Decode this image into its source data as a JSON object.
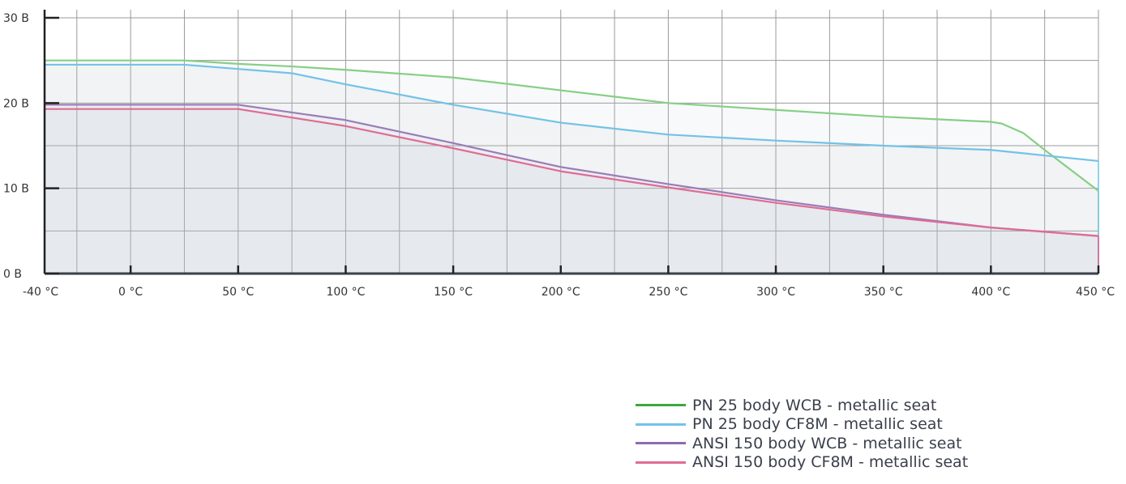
{
  "chart_data": {
    "type": "line",
    "title": "",
    "xlabel": "",
    "ylabel": "",
    "x_domain": [
      -40,
      450
    ],
    "y_domain": [
      0,
      30
    ],
    "x_ticks": [
      {
        "value": -40,
        "label": "-40 °C"
      },
      {
        "value": 0,
        "label": "0 °C"
      },
      {
        "value": 50,
        "label": "50 °C"
      },
      {
        "value": 100,
        "label": "100 °C"
      },
      {
        "value": 150,
        "label": "150 °C"
      },
      {
        "value": 200,
        "label": "200 °C"
      },
      {
        "value": 250,
        "label": "250 °C"
      },
      {
        "value": 300,
        "label": "300 °C"
      },
      {
        "value": 350,
        "label": "350 °C"
      },
      {
        "value": 400,
        "label": "400 °C"
      },
      {
        "value": 450,
        "label": "450 °C"
      }
    ],
    "y_ticks": [
      {
        "value": 0,
        "label": "0 B"
      },
      {
        "value": 10,
        "label": "10 B"
      },
      {
        "value": 20,
        "label": "20 B"
      },
      {
        "value": 30,
        "label": "30 B"
      }
    ],
    "grid": true,
    "legend_position": "bottom-right",
    "series": [
      {
        "name": "PN 25 body WCB - metallic seat",
        "color": "#3aa83a",
        "line_color": "#86cf86",
        "points": [
          [
            -40,
            25
          ],
          [
            25,
            25
          ],
          [
            50,
            24.6
          ],
          [
            75,
            24.3
          ],
          [
            100,
            23.9
          ],
          [
            150,
            23
          ],
          [
            200,
            21.5
          ],
          [
            250,
            20
          ],
          [
            300,
            19.2
          ],
          [
            350,
            18.4
          ],
          [
            400,
            17.8
          ],
          [
            405,
            17.6
          ],
          [
            415,
            16.5
          ],
          [
            425,
            14.5
          ],
          [
            450,
            9.7
          ]
        ]
      },
      {
        "name": "PN 25 body CF8M - metallic seat",
        "color": "#73c2e6",
        "line_color": "#73c2e6",
        "points": [
          [
            -40,
            24.5
          ],
          [
            25,
            24.5
          ],
          [
            50,
            24
          ],
          [
            75,
            23.5
          ],
          [
            100,
            22.2
          ],
          [
            150,
            19.8
          ],
          [
            200,
            17.7
          ],
          [
            250,
            16.3
          ],
          [
            300,
            15.6
          ],
          [
            350,
            15.0
          ],
          [
            400,
            14.5
          ],
          [
            450,
            13.2
          ]
        ]
      },
      {
        "name": "ANSI 150 body WCB - metallic seat",
        "color": "#8e6bad",
        "line_color": "#9a7cb8",
        "points": [
          [
            -40,
            19.8
          ],
          [
            50,
            19.8
          ],
          [
            100,
            18
          ],
          [
            150,
            15.3
          ],
          [
            200,
            12.5
          ],
          [
            250,
            10.5
          ],
          [
            300,
            8.6
          ],
          [
            350,
            6.9
          ],
          [
            400,
            5.4
          ],
          [
            450,
            4.4
          ]
        ]
      },
      {
        "name": "ANSI 150 body CF8M - metallic seat",
        "color": "#df6b95",
        "line_color": "#df6b95",
        "points": [
          [
            -40,
            19.3
          ],
          [
            50,
            19.3
          ],
          [
            100,
            17.3
          ],
          [
            150,
            14.7
          ],
          [
            200,
            12
          ],
          [
            250,
            10.1
          ],
          [
            300,
            8.3
          ],
          [
            350,
            6.7
          ],
          [
            400,
            5.4
          ],
          [
            450,
            4.4
          ]
        ]
      }
    ]
  }
}
